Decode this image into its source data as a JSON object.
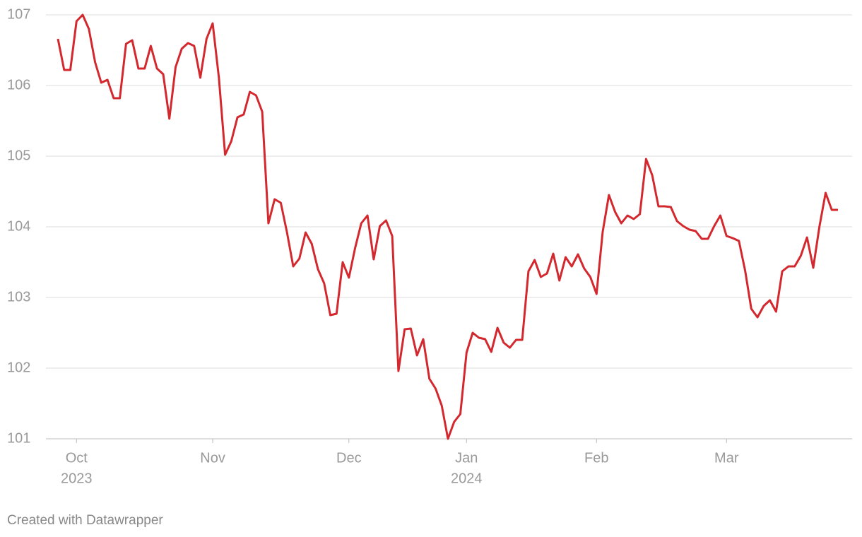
{
  "chart_data": {
    "type": "line",
    "color": "#d3282e",
    "grid": true,
    "footer": "Created with Datawrapper",
    "ylim": [
      101,
      107
    ],
    "yticks": [
      101,
      102,
      103,
      104,
      105,
      106,
      107
    ],
    "categories": [
      null,
      null,
      null,
      "Oct",
      null,
      null,
      null,
      null,
      null,
      null,
      null,
      null,
      null,
      null,
      null,
      null,
      null,
      null,
      null,
      null,
      null,
      null,
      null,
      null,
      null,
      "Nov",
      null,
      null,
      null,
      null,
      null,
      null,
      null,
      null,
      null,
      null,
      null,
      null,
      null,
      null,
      null,
      null,
      null,
      null,
      null,
      null,
      null,
      "Dec",
      null,
      null,
      null,
      null,
      null,
      null,
      null,
      null,
      null,
      null,
      null,
      null,
      null,
      null,
      null,
      null,
      null,
      null,
      "Jan",
      null,
      null,
      null,
      null,
      null,
      null,
      null,
      null,
      null,
      null,
      null,
      null,
      null,
      null,
      null,
      null,
      null,
      null,
      null,
      null,
      "Feb",
      null,
      null,
      null,
      null,
      null,
      null,
      null,
      null,
      null,
      null,
      null,
      null,
      null,
      null,
      null,
      null,
      null,
      null,
      null,
      null,
      "Mar",
      null,
      null,
      null,
      null,
      null,
      null,
      null,
      null,
      null,
      null,
      null,
      null,
      null,
      null,
      null,
      null,
      null,
      null
    ],
    "year_labels": [
      null,
      null,
      null,
      "2023",
      null,
      null,
      null,
      null,
      null,
      null,
      null,
      null,
      null,
      null,
      null,
      null,
      null,
      null,
      null,
      null,
      null,
      null,
      null,
      null,
      null,
      null,
      null,
      null,
      null,
      null,
      null,
      null,
      null,
      null,
      null,
      null,
      null,
      null,
      null,
      null,
      null,
      null,
      null,
      null,
      null,
      null,
      null,
      null,
      null,
      null,
      null,
      null,
      null,
      null,
      null,
      null,
      null,
      null,
      null,
      null,
      null,
      null,
      null,
      null,
      null,
      null,
      "2024",
      null,
      null,
      null,
      null,
      null,
      null,
      null,
      null,
      null,
      null,
      null,
      null,
      null,
      null,
      null,
      null,
      null,
      null,
      null,
      null,
      null,
      null,
      null,
      null,
      null,
      null,
      null,
      null,
      null,
      null,
      null,
      null,
      null,
      null,
      null,
      null,
      null,
      null,
      null,
      null,
      null,
      null,
      null,
      null,
      null,
      null,
      null,
      null,
      null,
      null,
      null,
      null,
      null,
      null,
      null,
      null,
      null,
      null,
      null,
      null
    ],
    "values": [
      106.66,
      106.22,
      106.22,
      106.91,
      107.0,
      106.8,
      106.33,
      106.04,
      106.08,
      105.82,
      105.82,
      106.59,
      106.64,
      106.24,
      106.24,
      106.56,
      106.24,
      106.16,
      105.53,
      106.26,
      106.52,
      106.6,
      106.56,
      106.11,
      106.66,
      106.88,
      106.11,
      105.02,
      105.21,
      105.55,
      105.59,
      105.91,
      105.86,
      105.63,
      104.05,
      104.39,
      104.34,
      103.92,
      103.44,
      103.55,
      103.92,
      103.76,
      103.4,
      103.2,
      102.75,
      102.77,
      103.5,
      103.28,
      103.7,
      104.05,
      104.16,
      103.54,
      104.01,
      104.09,
      103.87,
      101.96,
      102.55,
      102.56,
      102.18,
      102.41,
      101.85,
      101.71,
      101.47,
      101.0,
      101.24,
      101.35,
      102.22,
      102.5,
      102.43,
      102.41,
      102.23,
      102.57,
      102.36,
      102.29,
      102.4,
      102.4,
      103.37,
      103.53,
      103.29,
      103.34,
      103.62,
      103.24,
      103.57,
      103.44,
      103.61,
      103.41,
      103.29,
      103.05,
      103.93,
      104.45,
      104.21,
      104.05,
      104.16,
      104.11,
      104.18,
      104.96,
      104.73,
      104.29,
      104.29,
      104.28,
      104.08,
      104.01,
      103.96,
      103.94,
      103.83,
      103.83,
      104.01,
      104.16,
      103.87,
      103.84,
      103.8,
      103.38,
      102.84,
      102.72,
      102.88,
      102.96,
      102.8,
      103.37,
      103.44,
      103.44,
      103.59,
      103.85,
      103.42,
      104.0,
      104.48,
      104.24,
      104.24
    ]
  }
}
